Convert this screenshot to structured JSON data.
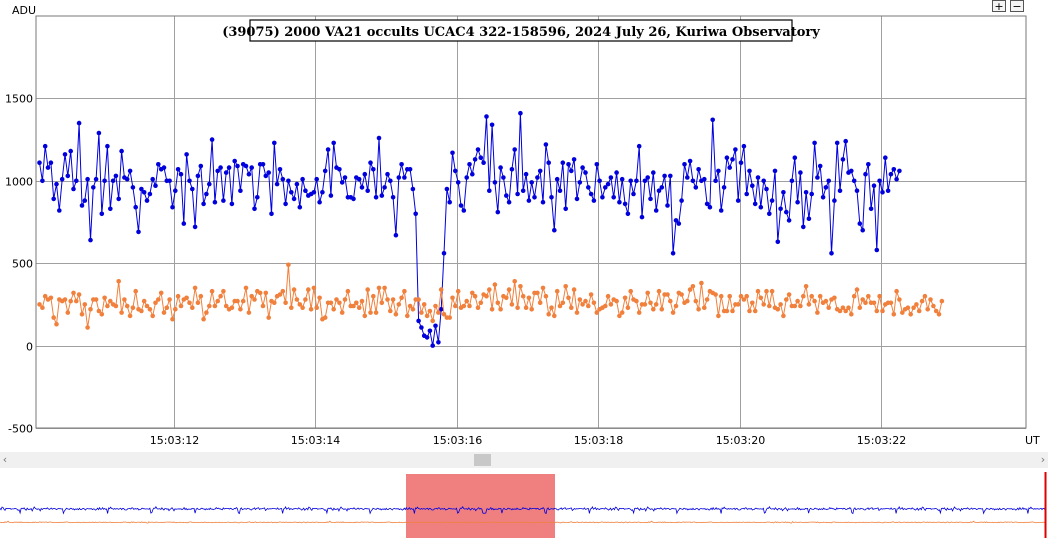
{
  "controls": {
    "zoom_in": "+",
    "zoom_out": "−"
  },
  "scrollbar": {
    "left_arrow": "‹",
    "right_arrow": "›"
  },
  "colors": {
    "target": "#0000dd",
    "comparison": "#f0803c",
    "grid": "#a0a0a0",
    "window": "#f08080",
    "marker": "#dd0000"
  },
  "chart_data": {
    "type": "line",
    "title": "(39075) 2000 VA21 occults UCAC4 322-158596, 2024 July 26, Kuriwa Observatory",
    "ylabel": "ADU",
    "xlabel": "UT",
    "ylim": [
      -500,
      2000
    ],
    "xlim": [
      "15:03:10.05",
      "15:03:24.05"
    ],
    "y_ticks": [
      -500,
      0,
      500,
      1000,
      1500
    ],
    "x_ticks": [
      "15:03:12",
      "15:03:14",
      "15:03:16",
      "15:03:18",
      "15:03:20",
      "15:03:22"
    ],
    "grid": true,
    "sample_interval_s": 0.04,
    "series": [
      {
        "role": "target",
        "color": "#0000dd",
        "values": [
          1110,
          1000,
          1210,
          1080,
          1110,
          890,
          980,
          820,
          1010,
          1160,
          1030,
          1180,
          950,
          1000,
          1350,
          850,
          880,
          1010,
          640,
          960,
          1010,
          1290,
          800,
          1000,
          1210,
          830,
          1000,
          1030,
          890,
          1180,
          1020,
          1010,
          1060,
          960,
          840,
          690,
          950,
          930,
          880,
          920,
          1010,
          970,
          1100,
          1070,
          1080,
          1000,
          1000,
          840,
          940,
          1070,
          1040,
          740,
          1160,
          1000,
          950,
          720,
          1030,
          1090,
          860,
          920,
          980,
          1250,
          870,
          1060,
          1080,
          880,
          1050,
          1080,
          860,
          1120,
          1090,
          940,
          1100,
          1090,
          1040,
          1080,
          830,
          900,
          1100,
          1100,
          1030,
          1050,
          800,
          1230,
          980,
          1070,
          1010,
          860,
          1000,
          930,
          890,
          980,
          840,
          1010,
          940,
          910,
          920,
          930,
          1010,
          870,
          930,
          1060,
          1190,
          910,
          1230,
          1080,
          1070,
          990,
          1020,
          900,
          900,
          890,
          1020,
          1010,
          960,
          1040,
          940,
          1110,
          1070,
          900,
          1260,
          910,
          960,
          1040,
          1000,
          900,
          670,
          1020,
          1100,
          1020,
          1070,
          1070,
          950,
          800,
          150,
          110,
          60,
          50,
          90,
          0,
          120,
          20,
          220,
          560,
          950,
          870,
          1170,
          1060,
          990,
          850,
          820,
          1020,
          1100,
          1040,
          1130,
          1190,
          1140,
          1110,
          1390,
          940,
          1340,
          990,
          810,
          1080,
          1020,
          910,
          870,
          1070,
          1190,
          920,
          1410,
          940,
          1040,
          880,
          990,
          900,
          1020,
          1060,
          870,
          1220,
          1110,
          900,
          700,
          1010,
          940,
          1110,
          830,
          1100,
          1060,
          1130,
          890,
          990,
          1080,
          1050,
          960,
          920,
          880,
          1100,
          1000,
          900,
          960,
          980,
          1020,
          900,
          1050,
          870,
          1010,
          860,
          800,
          1000,
          920,
          1000,
          1210,
          780,
          1000,
          1020,
          890,
          1050,
          820,
          940,
          960,
          1030,
          850,
          1030,
          560,
          760,
          740,
          880,
          1100,
          1020,
          1120,
          1000,
          960,
          1070,
          1000,
          1010,
          860,
          840,
          1370,
          1000,
          1060,
          820,
          960,
          1140,
          1080,
          1130,
          1190,
          880,
          1110,
          1210,
          920,
          1060,
          970,
          860,
          1020,
          840,
          1000,
          950,
          800,
          880,
          1060,
          630,
          830,
          930,
          810,
          760,
          1000,
          1140,
          870,
          1050,
          720,
          930,
          770,
          920,
          1230,
          1020,
          1090,
          900,
          960,
          1000,
          560,
          880,
          1230,
          940,
          1130,
          1240,
          1050,
          1060,
          1000,
          940,
          740,
          700,
          1040,
          1100,
          830,
          970,
          580,
          1000,
          930,
          1140,
          940,
          1040,
          1070,
          1010,
          1060
        ]
      },
      {
        "role": "comparison",
        "color": "#f0803c",
        "values": [
          250,
          230,
          300,
          280,
          290,
          170,
          130,
          280,
          270,
          280,
          200,
          270,
          320,
          270,
          310,
          190,
          250,
          110,
          220,
          280,
          280,
          210,
          190,
          290,
          240,
          270,
          250,
          240,
          390,
          200,
          280,
          240,
          180,
          230,
          330,
          220,
          210,
          270,
          240,
          220,
          180,
          260,
          280,
          320,
          200,
          230,
          280,
          160,
          220,
          300,
          240,
          280,
          290,
          260,
          230,
          350,
          260,
          300,
          160,
          200,
          240,
          330,
          240,
          270,
          300,
          330,
          240,
          220,
          230,
          270,
          270,
          220,
          270,
          350,
          200,
          300,
          280,
          330,
          320,
          240,
          320,
          170,
          270,
          260,
          300,
          310,
          330,
          260,
          490,
          230,
          340,
          280,
          250,
          230,
          280,
          340,
          220,
          350,
          230,
          290,
          160,
          170,
          260,
          260,
          220,
          280,
          260,
          200,
          280,
          330,
          240,
          240,
          260,
          230,
          270,
          180,
          340,
          200,
          300,
          200,
          350,
          260,
          350,
          280,
          210,
          280,
          190,
          250,
          290,
          330,
          180,
          240,
          220,
          280,
          280,
          200,
          250,
          180,
          210,
          150,
          240,
          200,
          340,
          190,
          170,
          170,
          290,
          240,
          330,
          230,
          240,
          270,
          240,
          320,
          300,
          230,
          260,
          310,
          300,
          340,
          220,
          370,
          260,
          220,
          300,
          290,
          340,
          250,
          390,
          230,
          360,
          300,
          230,
          290,
          220,
          320,
          320,
          260,
          350,
          300,
          190,
          230,
          180,
          330,
          240,
          260,
          360,
          290,
          230,
          340,
          200,
          280,
          250,
          270,
          240,
          310,
          260,
          200,
          220,
          230,
          240,
          300,
          250,
          280,
          270,
          180,
          200,
          290,
          230,
          330,
          280,
          270,
          200,
          250,
          250,
          320,
          260,
          220,
          250,
          330,
          220,
          310,
          310,
          270,
          200,
          240,
          320,
          310,
          260,
          270,
          340,
          360,
          270,
          220,
          380,
          230,
          280,
          330,
          320,
          310,
          180,
          300,
          210,
          210,
          300,
          210,
          250,
          250,
          300,
          280,
          300,
          210,
          260,
          210,
          330,
          290,
          250,
          330,
          240,
          330,
          230,
          220,
          250,
          180,
          280,
          310,
          240,
          240,
          270,
          240,
          300,
          360,
          250,
          300,
          270,
          200,
          300,
          260,
          270,
          230,
          280,
          290,
          220,
          210,
          230,
          210,
          230,
          190,
          300,
          340,
          230,
          280,
          260,
          300,
          260,
          260,
          210,
          300,
          210,
          250,
          260,
          260,
          190,
          330,
          280,
          200,
          220,
          230,
          190,
          230,
          250,
          210,
          270,
          300,
          220,
          280,
          240,
          210,
          190,
          270
        ]
      }
    ]
  }
}
